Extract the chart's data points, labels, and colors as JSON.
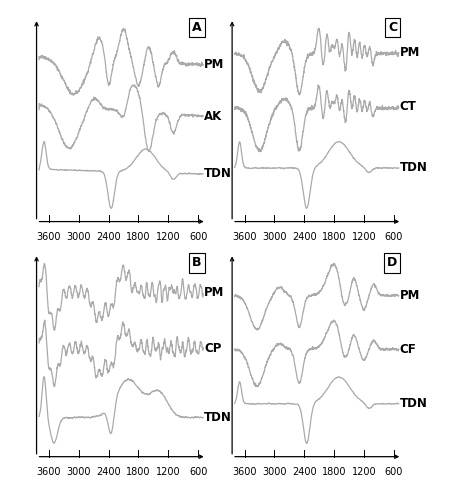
{
  "line_color": "#aaaaaa",
  "line_width": 0.9,
  "background_color": "#ffffff",
  "tick_fontsize": 7,
  "label_fontsize": 8.5,
  "panel_label_fontsize": 9,
  "x_ticks": [
    3600,
    3000,
    2400,
    1800,
    1200,
    600
  ],
  "panel_order": [
    [
      "A",
      "C"
    ],
    [
      "B",
      "D"
    ]
  ],
  "panels": {
    "A": {
      "labels": [
        "PM",
        "AK",
        "TDN"
      ],
      "offsets": [
        1.7,
        0.85,
        0.0
      ]
    },
    "B": {
      "labels": [
        "PM",
        "CP",
        "TDN"
      ],
      "offsets": [
        1.7,
        0.85,
        0.0
      ]
    },
    "C": {
      "labels": [
        "PM",
        "CT",
        "TDN"
      ],
      "offsets": [
        1.7,
        0.85,
        0.0
      ]
    },
    "D": {
      "labels": [
        "PM",
        "CF",
        "TDN"
      ],
      "offsets": [
        1.7,
        0.85,
        0.0
      ]
    }
  }
}
